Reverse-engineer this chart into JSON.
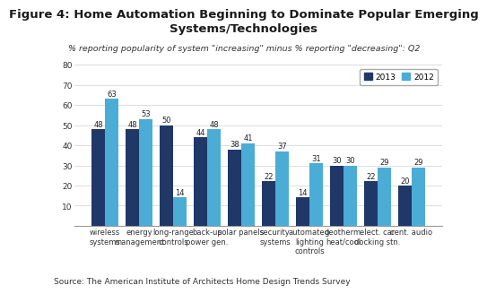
{
  "title": "Figure 4: Home Automation Beginning to Dominate Popular Emerging\nSystems/Technologies",
  "subtitle": "% reporting popularity of system \"increasing\" minus % reporting \"decreasing\": Q2",
  "source": "Source: The American Institute of Architects Home Design Trends Survey",
  "categories": [
    "wireless\nsystems",
    "energy\nmanagement",
    "long-range\ncontrols",
    "back-up\npower gen.",
    "solar panels",
    "security\nsystems",
    "automated\nlighting\ncontrols",
    "geotherm.\nheat/cool",
    "elect. car\ndocking stn.",
    "cent. audio"
  ],
  "values_2013": [
    48,
    48,
    50,
    44,
    38,
    22,
    14,
    30,
    22,
    20
  ],
  "values_2012": [
    63,
    53,
    14,
    48,
    41,
    37,
    31,
    30,
    29,
    29
  ],
  "color_2013": "#1f3868",
  "color_2012": "#4bacd6",
  "ylim": [
    0,
    80
  ],
  "yticks": [
    0,
    10,
    20,
    30,
    40,
    50,
    60,
    70,
    80
  ],
  "legend_2013": "2013",
  "legend_2012": "2012",
  "bar_width": 0.4,
  "title_fontsize": 9.5,
  "subtitle_fontsize": 6.8,
  "source_fontsize": 6.5,
  "tick_fontsize": 6.5,
  "label_fontsize": 6.0,
  "background_color": "#ffffff",
  "plot_bg_color": "#ffffff",
  "grid_color": "#d8d8d8"
}
